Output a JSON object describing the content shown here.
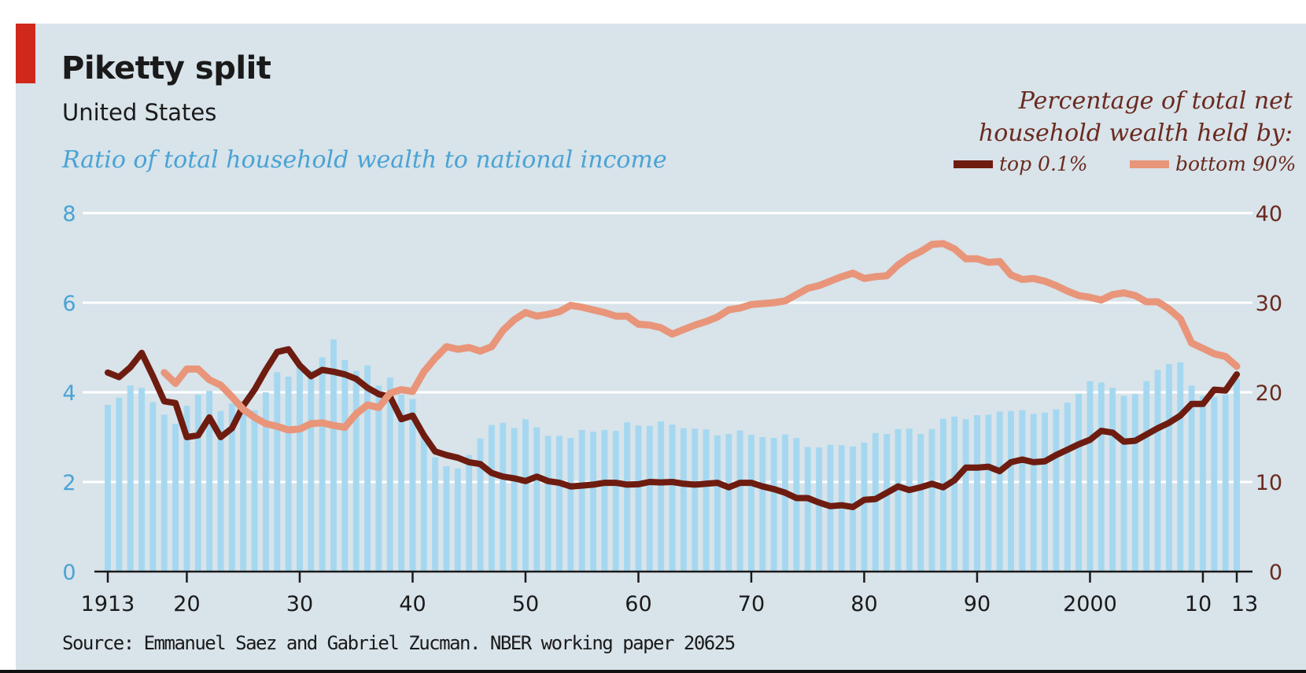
{
  "header": {
    "title": "Piketty split",
    "subtitle": "United States",
    "left_axis_title": "Ratio of total household wealth to national income",
    "right_axis_title_line1": "Percentage of total net",
    "right_axis_title_line2": "household wealth held by:"
  },
  "legend": {
    "top_label": "top 0.1%",
    "bottom_label": "bottom 90%"
  },
  "source": "Source: Emmanuel Saez and Gabriel Zucman. NBER working paper 20625",
  "colors": {
    "panel": "#d8e3ea",
    "accent": "#d0291c",
    "bars": "#a5d8f0",
    "top": "#6e1c10",
    "bottom": "#e8957a",
    "left_axis": "#4aa3d4",
    "right_axis": "#6a2a1e"
  },
  "chart_data": {
    "type": "bar",
    "title": "Piketty split",
    "subtitle": "United States",
    "x": [
      1913,
      1914,
      1915,
      1916,
      1917,
      1918,
      1919,
      1920,
      1921,
      1922,
      1923,
      1924,
      1925,
      1926,
      1927,
      1928,
      1929,
      1930,
      1931,
      1932,
      1933,
      1934,
      1935,
      1936,
      1937,
      1938,
      1939,
      1940,
      1941,
      1942,
      1943,
      1944,
      1945,
      1946,
      1947,
      1948,
      1949,
      1950,
      1951,
      1952,
      1953,
      1954,
      1955,
      1956,
      1957,
      1958,
      1959,
      1960,
      1961,
      1962,
      1963,
      1964,
      1965,
      1966,
      1967,
      1968,
      1969,
      1970,
      1971,
      1972,
      1973,
      1974,
      1975,
      1976,
      1977,
      1978,
      1979,
      1980,
      1981,
      1982,
      1983,
      1984,
      1985,
      1986,
      1987,
      1988,
      1989,
      1990,
      1991,
      1992,
      1993,
      1994,
      1995,
      1996,
      1997,
      1998,
      1999,
      2000,
      2001,
      2002,
      2003,
      2004,
      2005,
      2006,
      2007,
      2008,
      2009,
      2010,
      2011,
      2012,
      2013
    ],
    "x_tick_values": [
      1913,
      1920,
      1930,
      1940,
      1950,
      1960,
      1970,
      1980,
      1990,
      2000,
      2010,
      2013
    ],
    "x_tick_labels": [
      "1913",
      "20",
      "30",
      "40",
      "50",
      "60",
      "70",
      "80",
      "90",
      "2000",
      "10",
      "13"
    ],
    "xlim": [
      1913,
      2013
    ],
    "left_axis": {
      "label": "Ratio of total household wealth to national income",
      "ylim": [
        0,
        8
      ],
      "ticks": [
        0,
        2,
        4,
        6,
        8
      ]
    },
    "right_axis": {
      "label": "Percentage of total net household wealth held by:",
      "ylim": [
        0,
        40
      ],
      "ticks": [
        0,
        10,
        20,
        30,
        40
      ]
    },
    "grid": true,
    "legend_position": "top-right",
    "series": [
      {
        "name": "",
        "type": "bar",
        "axis": "left",
        "values": [
          3.72,
          3.88,
          4.15,
          4.1,
          3.78,
          3.5,
          3.3,
          3.7,
          3.95,
          4.03,
          3.58,
          3.75,
          3.8,
          3.6,
          4.0,
          4.45,
          4.35,
          4.55,
          4.5,
          4.78,
          5.18,
          4.72,
          4.48,
          4.6,
          4.15,
          4.33,
          3.95,
          3.85,
          3.05,
          2.55,
          2.35,
          2.3,
          2.6,
          2.97,
          3.27,
          3.32,
          3.2,
          3.4,
          3.22,
          3.03,
          3.03,
          2.98,
          3.16,
          3.12,
          3.16,
          3.14,
          3.33,
          3.26,
          3.25,
          3.35,
          3.28,
          3.2,
          3.19,
          3.17,
          3.04,
          3.07,
          3.15,
          3.05,
          3.0,
          2.98,
          3.06,
          2.98,
          2.78,
          2.77,
          2.83,
          2.82,
          2.79,
          2.88,
          3.09,
          3.07,
          3.18,
          3.19,
          3.07,
          3.18,
          3.41,
          3.46,
          3.4,
          3.49,
          3.5,
          3.57,
          3.58,
          3.6,
          3.52,
          3.55,
          3.62,
          3.77,
          3.97,
          4.25,
          4.22,
          4.1,
          3.92,
          3.96,
          4.25,
          4.5,
          4.63,
          4.67,
          4.15,
          3.92,
          3.9,
          3.95,
          4.3
        ]
      },
      {
        "name": "top 0.1%",
        "type": "line",
        "axis": "right",
        "values": [
          22.2,
          21.7,
          22.8,
          24.4,
          21.8,
          19.0,
          18.8,
          15.0,
          15.2,
          17.2,
          15.0,
          16.0,
          18.5,
          20.3,
          22.5,
          24.5,
          24.8,
          23.0,
          21.8,
          22.5,
          22.3,
          22.0,
          21.5,
          20.5,
          19.8,
          19.5,
          17.0,
          17.4,
          15.2,
          13.4,
          13.0,
          12.7,
          12.2,
          12.0,
          11.0,
          10.6,
          10.4,
          10.1,
          10.6,
          10.1,
          9.9,
          9.5,
          9.6,
          9.7,
          9.9,
          9.9,
          9.7,
          9.75,
          10.0,
          9.95,
          10.0,
          9.8,
          9.7,
          9.8,
          9.9,
          9.4,
          9.9,
          9.9,
          9.5,
          9.2,
          8.8,
          8.2,
          8.2,
          7.7,
          7.3,
          7.4,
          7.2,
          8.0,
          8.1,
          8.8,
          9.5,
          9.1,
          9.4,
          9.8,
          9.4,
          10.2,
          11.6,
          11.6,
          11.7,
          11.2,
          12.2,
          12.5,
          12.2,
          12.3,
          13.0,
          13.6,
          14.2,
          14.7,
          15.7,
          15.5,
          14.5,
          14.6,
          15.3,
          16.0,
          16.6,
          17.4,
          18.7,
          18.7,
          20.3,
          20.2,
          22.0
        ]
      },
      {
        "name": "bottom 90%",
        "type": "line",
        "axis": "right",
        "values": [
          null,
          null,
          null,
          null,
          null,
          22.2,
          21.0,
          22.6,
          22.6,
          21.4,
          20.8,
          19.5,
          18.1,
          17.2,
          16.5,
          16.2,
          15.8,
          15.9,
          16.5,
          16.6,
          16.3,
          16.1,
          17.6,
          18.6,
          18.3,
          19.9,
          20.3,
          20.1,
          22.3,
          23.8,
          25.1,
          24.8,
          25.0,
          24.6,
          25.1,
          26.9,
          28.1,
          28.9,
          28.5,
          28.7,
          29.0,
          29.7,
          29.5,
          29.2,
          28.9,
          28.5,
          28.5,
          27.6,
          27.5,
          27.2,
          26.5,
          27.0,
          27.5,
          27.9,
          28.4,
          29.2,
          29.4,
          29.8,
          29.9,
          30.0,
          30.2,
          30.9,
          31.6,
          31.9,
          32.4,
          32.9,
          33.3,
          32.7,
          32.9,
          33.0,
          34.2,
          35.1,
          35.7,
          36.5,
          36.6,
          36.0,
          34.9,
          34.9,
          34.5,
          34.6,
          33.1,
          32.6,
          32.7,
          32.4,
          31.9,
          31.3,
          30.8,
          30.6,
          30.3,
          30.9,
          31.1,
          30.8,
          30.1,
          30.1,
          29.3,
          28.2,
          25.5,
          24.9,
          24.3,
          24.0,
          22.9
        ]
      }
    ]
  }
}
